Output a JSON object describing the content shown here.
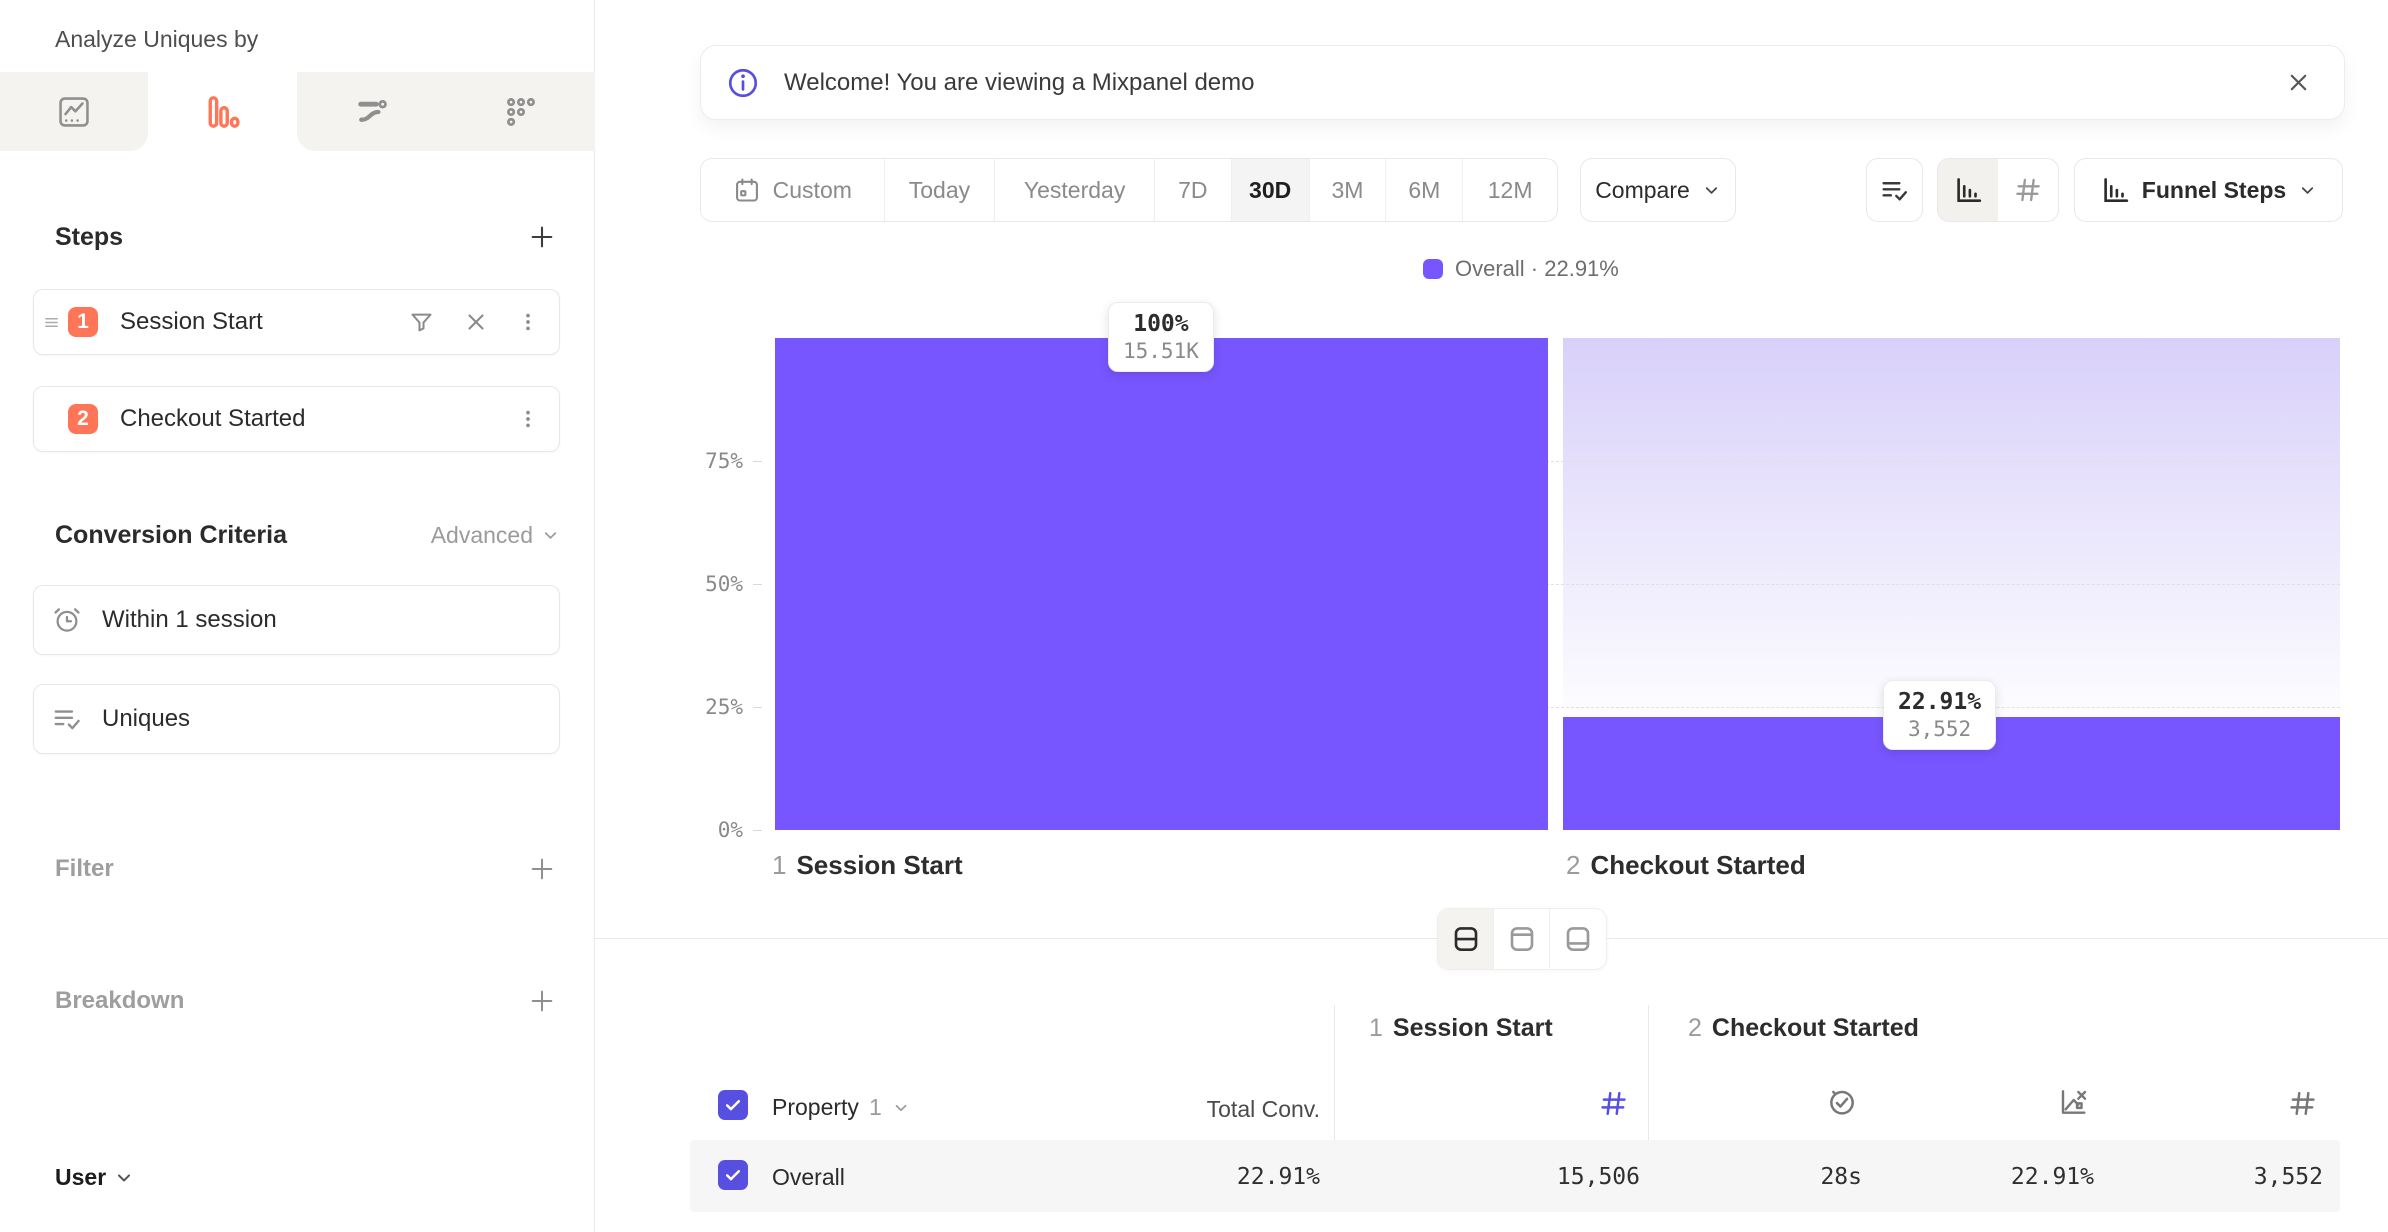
{
  "colors": {
    "purple": "#7856FF",
    "indigo": "#574FE0",
    "orange": "#FF7557",
    "dropoff_top": "#d8d0fa",
    "row_bg": "#f6f6f6"
  },
  "sidebar": {
    "analyze_label": "Analyze Uniques by",
    "analyze_value": "User",
    "tabs": [
      {
        "name": "insights"
      },
      {
        "name": "funnels",
        "active": true
      },
      {
        "name": "flows"
      },
      {
        "name": "retention"
      }
    ],
    "steps": {
      "title": "Steps",
      "items": [
        {
          "num": "1",
          "label": "Session Start"
        },
        {
          "num": "2",
          "label": "Checkout Started"
        }
      ]
    },
    "conversion_criteria": {
      "title": "Conversion Criteria",
      "advanced_label": "Advanced",
      "items": [
        {
          "label": "Within 1 session"
        },
        {
          "label": "Uniques"
        }
      ]
    },
    "filter_label": "Filter",
    "breakdown_label": "Breakdown"
  },
  "banner": {
    "text": "Welcome! You are viewing a Mixpanel demo"
  },
  "toolbar": {
    "date_ranges": [
      "Custom",
      "Today",
      "Yesterday",
      "7D",
      "30D",
      "3M",
      "6M",
      "12M"
    ],
    "selected_range": "30D",
    "compare_label": "Compare",
    "funnel_steps_label": "Funnel Steps"
  },
  "legend": {
    "text": "Overall · 22.91%"
  },
  "chart_data": {
    "type": "bar",
    "title": "Funnel Steps",
    "categories": [
      "Session Start",
      "Checkout Started"
    ],
    "category_numbers": [
      "1",
      "2"
    ],
    "series": [
      {
        "name": "Overall",
        "values_pct": [
          100,
          22.91
        ],
        "counts": [
          15506,
          3552
        ]
      }
    ],
    "bar_labels": [
      {
        "pct": "100%",
        "count": "15.51K"
      },
      {
        "pct": "22.91%",
        "count": "3,552"
      }
    ],
    "yticks": [
      "0%",
      "25%",
      "50%",
      "75%"
    ],
    "ylim": [
      0,
      100
    ],
    "grid": "dashed horizontal at 25/50/75",
    "legend_position": "top-center",
    "overall_conversion": "22.91%"
  },
  "table": {
    "groups": [
      {
        "num": "1",
        "label": "Session Start"
      },
      {
        "num": "2",
        "label": "Checkout Started"
      }
    ],
    "property_label": "Property",
    "property_num": "1",
    "total_conv_label": "Total Conv.",
    "rows": [
      {
        "name": "Overall",
        "total_conv": "22.91%",
        "session_start_count": "15,506",
        "avg_time_to_convert": "28s",
        "conversion_rate": "22.91%",
        "checkout_count": "3,552"
      }
    ]
  }
}
